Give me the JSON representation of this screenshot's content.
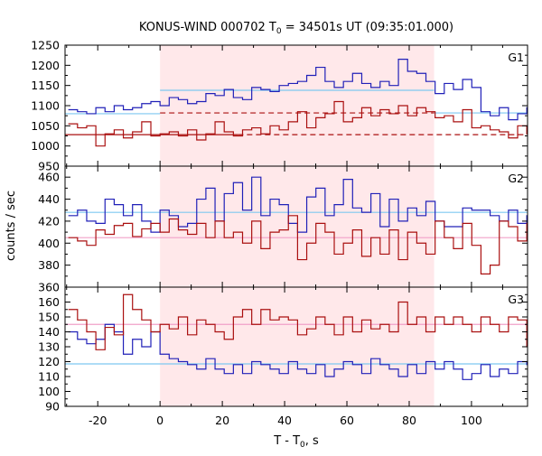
{
  "title": "KONUS-WIND 000702 T",
  "title_sub": "0",
  "title_rest": " = 34501s UT (09:35:01.000)",
  "ylabel": "counts / sec",
  "xlabel_main": "T - T",
  "xlabel_sub": "0",
  "xlabel_rest": ", s",
  "colors": {
    "blue": "#2020b8",
    "red": "#aa1010",
    "lightblue": "#7ec8f0",
    "pink": "#f0a0c8",
    "shade": "#ffe8ea"
  },
  "chart_data": {
    "type": "line",
    "title": "KONUS-WIND 000702 T0 = 34501s UT (09:35:01.000)",
    "xlabel": "T - T0, s",
    "ylabel": "counts / sec",
    "xlim": [
      -30.5,
      118
    ],
    "x_ticks": [
      -20,
      0,
      20,
      40,
      60,
      80,
      100
    ],
    "x_tick_labels": [
      "-20",
      "0",
      "20",
      "40",
      "60",
      "80",
      "100"
    ],
    "bin_width": 2.944,
    "bin_start": -29.44,
    "shaded_interval": [
      0,
      88
    ],
    "panels": [
      {
        "name": "G1",
        "ylim": [
          950,
          1250
        ],
        "yticks": [
          950,
          1000,
          1050,
          1100,
          1150,
          1200,
          1250
        ],
        "series": [
          {
            "color": "blue",
            "values": [
              1090,
              1085,
              1080,
              1095,
              1085,
              1100,
              1090,
              1095,
              1105,
              1110,
              1100,
              1120,
              1115,
              1105,
              1110,
              1130,
              1125,
              1140,
              1120,
              1115,
              1145,
              1140,
              1135,
              1150,
              1155,
              1160,
              1175,
              1195,
              1160,
              1145,
              1160,
              1180,
              1155,
              1145,
              1160,
              1150,
              1215,
              1185,
              1180,
              1160,
              1130,
              1155,
              1140,
              1165,
              1145,
              1085,
              1075,
              1095,
              1065,
              1080,
              1095,
              1065,
              1090,
              1075,
              1045,
              1080,
              1070
            ]
          },
          {
            "color": "red",
            "values": [
              1055,
              1045,
              1050,
              1000,
              1030,
              1040,
              1020,
              1035,
              1060,
              1025,
              1030,
              1035,
              1025,
              1040,
              1015,
              1030,
              1060,
              1035,
              1025,
              1040,
              1045,
              1030,
              1050,
              1040,
              1060,
              1085,
              1045,
              1070,
              1080,
              1110,
              1060,
              1070,
              1095,
              1075,
              1090,
              1080,
              1100,
              1075,
              1095,
              1085,
              1070,
              1075,
              1060,
              1090,
              1045,
              1050,
              1040,
              1035,
              1020,
              1050,
              1030,
              1025,
              1040,
              1040,
              1030,
              1020,
              1025
            ]
          }
        ],
        "background_lines": [
          {
            "color": "lightblue",
            "style": "solid",
            "segments": [
              [
                -30.5,
                0,
                1080
              ],
              [
                0,
                88,
                1138
              ],
              [
                88,
                118,
                1082
              ]
            ]
          },
          {
            "color": "red",
            "style": "dashed",
            "segments": [
              [
                0,
                88,
                1082
              ],
              [
                25,
                118,
                1028
              ]
            ]
          },
          {
            "color": "red",
            "style": "solid",
            "segments": [
              [
                -30.5,
                25,
                1028
              ]
            ]
          }
        ]
      },
      {
        "name": "G2",
        "ylim": [
          360,
          470
        ],
        "yticks": [
          360,
          380,
          400,
          420,
          440,
          460
        ],
        "series": [
          {
            "color": "blue",
            "values": [
              425,
              430,
              420,
              418,
              440,
              435,
              425,
              435,
              420,
              410,
              430,
              425,
              415,
              418,
              440,
              450,
              420,
              445,
              455,
              430,
              460,
              425,
              440,
              435,
              418,
              410,
              442,
              450,
              425,
              435,
              458,
              432,
              428,
              445,
              415,
              440,
              420,
              432,
              425,
              438,
              420,
              415,
              415,
              432,
              430,
              430,
              425,
              420,
              430,
              418,
              425,
              418,
              430,
              425,
              415,
              412,
              430
            ]
          },
          {
            "color": "red",
            "values": [
              405,
              402,
              398,
              412,
              408,
              416,
              418,
              406,
              413,
              418,
              410,
              422,
              412,
              408,
              418,
              405,
              420,
              405,
              410,
              400,
              420,
              395,
              410,
              412,
              425,
              385,
              400,
              418,
              410,
              390,
              400,
              412,
              388,
              405,
              390,
              412,
              385,
              410,
              400,
              390,
              420,
              405,
              395,
              418,
              398,
              372,
              380,
              420,
              415,
              402,
              418,
              410,
              395,
              402,
              398,
              415,
              405
            ]
          }
        ],
        "background_lines": [
          {
            "color": "lightblue",
            "style": "solid",
            "segments": [
              [
                -30.5,
                118,
                428
              ]
            ]
          },
          {
            "color": "pink",
            "style": "solid",
            "segments": [
              [
                -30.5,
                118,
                405
              ]
            ]
          }
        ]
      },
      {
        "name": "G3",
        "ylim": [
          90,
          170
        ],
        "yticks": [
          90,
          100,
          110,
          120,
          130,
          140,
          150,
          160
        ],
        "series": [
          {
            "color": "blue",
            "values": [
              140,
              135,
              132,
              135,
              145,
              140,
              125,
              135,
              130,
              140,
              125,
              122,
              120,
              118,
              115,
              122,
              115,
              112,
              118,
              112,
              120,
              118,
              115,
              112,
              120,
              115,
              112,
              118,
              110,
              115,
              120,
              118,
              112,
              122,
              118,
              115,
              110,
              118,
              112,
              120,
              115,
              120,
              115,
              108,
              112,
              118,
              110,
              115,
              112,
              120,
              118,
              112,
              115,
              110,
              128,
              108,
              100
            ]
          },
          {
            "color": "red",
            "values": [
              155,
              148,
              140,
              128,
              143,
              138,
              165,
              155,
              148,
              140,
              145,
              142,
              150,
              138,
              148,
              145,
              140,
              135,
              150,
              155,
              145,
              155,
              148,
              150,
              148,
              138,
              142,
              150,
              145,
              138,
              150,
              140,
              148,
              142,
              145,
              140,
              160,
              145,
              150,
              140,
              150,
              145,
              150,
              145,
              140,
              150,
              145,
              140,
              150,
              148,
              130,
              150,
              148,
              125,
              150,
              145,
              155
            ]
          }
        ],
        "background_lines": [
          {
            "color": "lightblue",
            "style": "solid",
            "segments": [
              [
                -30.5,
                118,
                118.5
              ]
            ]
          },
          {
            "color": "pink",
            "style": "solid",
            "segments": [
              [
                -30.5,
                118,
                145
              ]
            ]
          }
        ]
      }
    ]
  }
}
